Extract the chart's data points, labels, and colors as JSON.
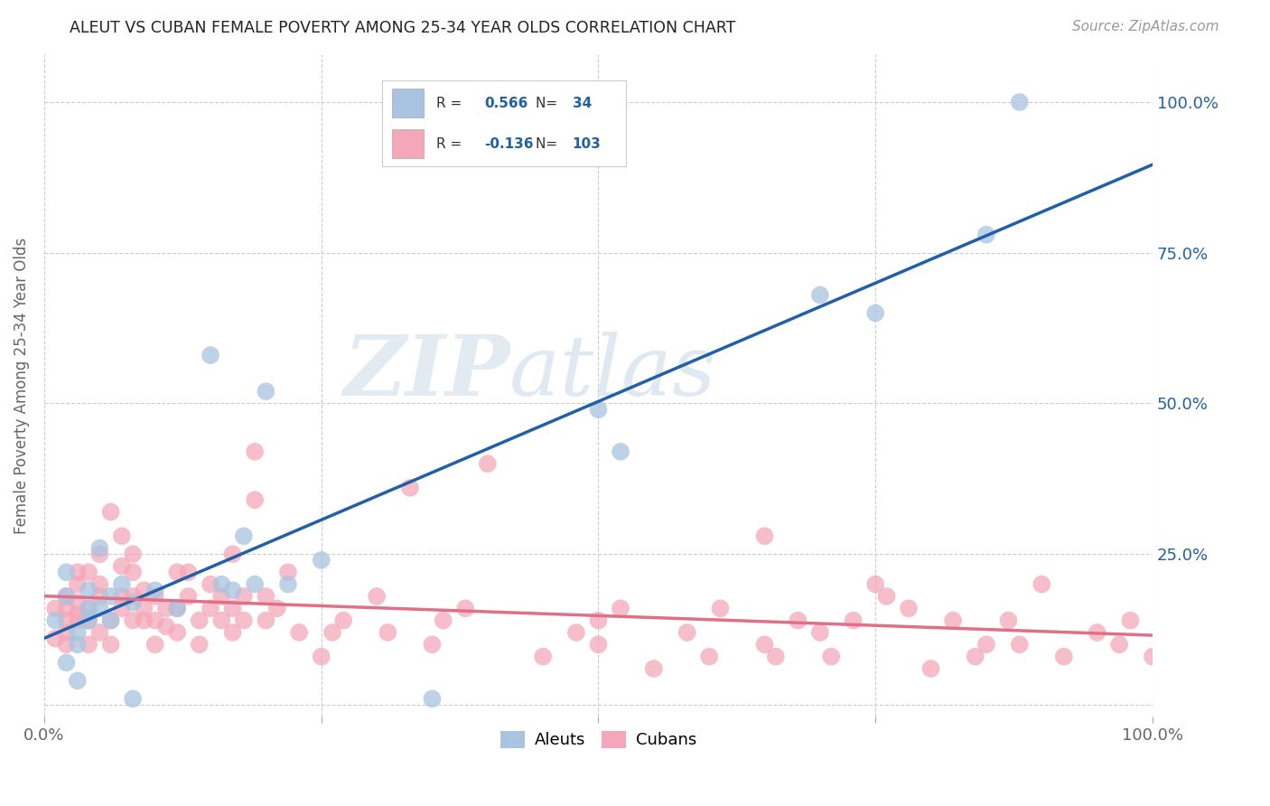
{
  "title": "ALEUT VS CUBAN FEMALE POVERTY AMONG 25-34 YEAR OLDS CORRELATION CHART",
  "source": "Source: ZipAtlas.com",
  "ylabel": "Female Poverty Among 25-34 Year Olds",
  "xlim": [
    0,
    1.0
  ],
  "ylim": [
    -0.02,
    1.08
  ],
  "xticks": [
    0.0,
    0.25,
    0.5,
    0.75,
    1.0
  ],
  "yticks": [
    0.0,
    0.25,
    0.5,
    0.75,
    1.0
  ],
  "xticklabels": [
    "0.0%",
    "",
    "",
    "",
    "100.0%"
  ],
  "yticklabels_right": [
    "",
    "25.0%",
    "50.0%",
    "75.0%",
    "100.0%"
  ],
  "aleut_color": "#a8c4e0",
  "cuban_color": "#f4a7b9",
  "aleut_line_color": "#2060a8",
  "cuban_line_color": "#e07085",
  "aleut_R": 0.566,
  "aleut_N": 34,
  "cuban_R": -0.136,
  "cuban_N": 103,
  "watermark_zip": "ZIP",
  "watermark_atlas": "atlas",
  "legend_label_aleuts": "Aleuts",
  "legend_label_cubans": "Cubans",
  "aleut_x": [
    0.01,
    0.02,
    0.02,
    0.02,
    0.03,
    0.03,
    0.03,
    0.04,
    0.04,
    0.04,
    0.05,
    0.05,
    0.06,
    0.06,
    0.07,
    0.08,
    0.08,
    0.1,
    0.12,
    0.15,
    0.16,
    0.17,
    0.18,
    0.19,
    0.2,
    0.22,
    0.25,
    0.35,
    0.5,
    0.52,
    0.7,
    0.75,
    0.85,
    0.88
  ],
  "aleut_y": [
    0.14,
    0.18,
    0.07,
    0.22,
    0.12,
    0.1,
    0.04,
    0.14,
    0.19,
    0.16,
    0.16,
    0.26,
    0.18,
    0.14,
    0.2,
    0.17,
    0.01,
    0.19,
    0.16,
    0.58,
    0.2,
    0.19,
    0.28,
    0.2,
    0.52,
    0.2,
    0.24,
    0.01,
    0.49,
    0.42,
    0.68,
    0.65,
    0.78,
    1.0
  ],
  "cuban_x": [
    0.01,
    0.01,
    0.02,
    0.02,
    0.02,
    0.02,
    0.02,
    0.03,
    0.03,
    0.03,
    0.03,
    0.03,
    0.04,
    0.04,
    0.04,
    0.04,
    0.05,
    0.05,
    0.05,
    0.05,
    0.06,
    0.06,
    0.06,
    0.07,
    0.07,
    0.07,
    0.07,
    0.08,
    0.08,
    0.08,
    0.08,
    0.09,
    0.09,
    0.09,
    0.1,
    0.1,
    0.1,
    0.11,
    0.11,
    0.12,
    0.12,
    0.12,
    0.13,
    0.13,
    0.14,
    0.14,
    0.15,
    0.15,
    0.16,
    0.16,
    0.17,
    0.17,
    0.17,
    0.18,
    0.18,
    0.19,
    0.19,
    0.2,
    0.2,
    0.21,
    0.22,
    0.23,
    0.25,
    0.26,
    0.27,
    0.3,
    0.31,
    0.33,
    0.35,
    0.36,
    0.38,
    0.4,
    0.45,
    0.48,
    0.5,
    0.5,
    0.52,
    0.55,
    0.58,
    0.6,
    0.61,
    0.65,
    0.65,
    0.66,
    0.68,
    0.7,
    0.71,
    0.73,
    0.75,
    0.76,
    0.78,
    0.8,
    0.82,
    0.84,
    0.85,
    0.87,
    0.88,
    0.9,
    0.92,
    0.95,
    0.97,
    0.98,
    1.0
  ],
  "cuban_y": [
    0.16,
    0.11,
    0.14,
    0.16,
    0.18,
    0.12,
    0.1,
    0.2,
    0.15,
    0.17,
    0.22,
    0.14,
    0.22,
    0.16,
    0.1,
    0.14,
    0.18,
    0.25,
    0.2,
    0.12,
    0.32,
    0.14,
    0.1,
    0.18,
    0.23,
    0.28,
    0.16,
    0.22,
    0.18,
    0.14,
    0.25,
    0.16,
    0.14,
    0.19,
    0.18,
    0.14,
    0.1,
    0.16,
    0.13,
    0.22,
    0.16,
    0.12,
    0.18,
    0.22,
    0.14,
    0.1,
    0.16,
    0.2,
    0.18,
    0.14,
    0.16,
    0.12,
    0.25,
    0.18,
    0.14,
    0.42,
    0.34,
    0.18,
    0.14,
    0.16,
    0.22,
    0.12,
    0.08,
    0.12,
    0.14,
    0.18,
    0.12,
    0.36,
    0.1,
    0.14,
    0.16,
    0.4,
    0.08,
    0.12,
    0.14,
    0.1,
    0.16,
    0.06,
    0.12,
    0.08,
    0.16,
    0.28,
    0.1,
    0.08,
    0.14,
    0.12,
    0.08,
    0.14,
    0.2,
    0.18,
    0.16,
    0.06,
    0.14,
    0.08,
    0.1,
    0.14,
    0.1,
    0.2,
    0.08,
    0.12,
    0.1,
    0.14,
    0.08
  ]
}
